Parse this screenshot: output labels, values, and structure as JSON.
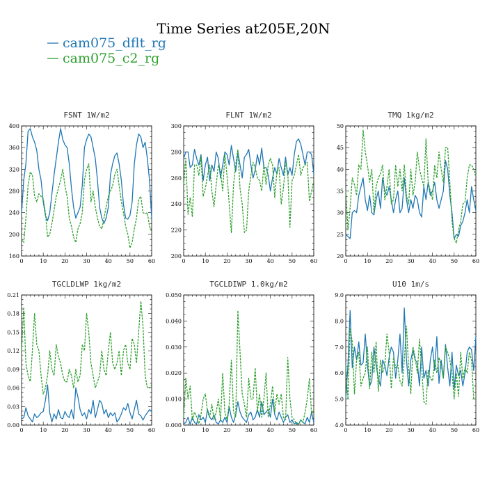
{
  "chart_data": {
    "title": "Time Series at205E,20N",
    "series_names": [
      "cam075_dflt_rg",
      "cam075_c2_rg"
    ],
    "colors": {
      "dflt": "#1f77b4",
      "c2": "#2ca02c"
    },
    "x_ticks": [
      "0",
      "10",
      "20",
      "30",
      "40",
      "50",
      "60"
    ],
    "panels": [
      {
        "type": "line",
        "title": "FSNT   1W/m2",
        "xlim": [
          0,
          60
        ],
        "ylim": [
          160,
          400
        ],
        "y_ticks": [
          "160",
          "200",
          "240",
          "280",
          "320",
          "360",
          "400"
        ],
        "series": [
          {
            "name": "cam075_dflt_rg",
            "values": [
              240,
              300,
              330,
              390,
              395,
              380,
              370,
              355,
              320,
              300,
              260,
              235,
              225,
              240,
              275,
              310,
              340,
              370,
              395,
              375,
              365,
              360,
              330,
              285,
              250,
              230,
              240,
              250,
              290,
              360,
              375,
              385,
              380,
              360,
              340,
              300,
              250,
              230,
              220,
              230,
              250,
              310,
              330,
              345,
              350,
              330,
              300,
              255,
              230,
              228,
              235,
              260,
              330,
              365,
              385,
              380,
              360,
              370,
              340,
              300,
              230
            ]
          },
          {
            "name": "cam075_c2_rg",
            "values": [
              190,
              185,
              230,
              290,
              315,
              310,
              270,
              260,
              275,
              270,
              265,
              240,
              195,
              200,
              220,
              245,
              270,
              285,
              300,
              320,
              290,
              270,
              230,
              215,
              195,
              185,
              210,
              220,
              240,
              300,
              320,
              330,
              260,
              280,
              250,
              230,
              215,
              210,
              230,
              250,
              270,
              280,
              290,
              310,
              320,
              290,
              260,
              240,
              215,
              200,
              175,
              185,
              210,
              230,
              265,
              270,
              240,
              238,
              240,
              215,
              205
            ]
          }
        ]
      },
      {
        "type": "line",
        "title": "FLNT   1W/m2",
        "xlim": [
          0,
          60
        ],
        "ylim": [
          200,
          300
        ],
        "y_ticks": [
          "200",
          "220",
          "240",
          "260",
          "280",
          "300"
        ],
        "series": [
          {
            "name": "cam075_dflt_rg",
            "values": [
              275,
              280,
              280,
              268,
              270,
              282,
              275,
              270,
              278,
              258,
              270,
              276,
              258,
              270,
              265,
              280,
              275,
              260,
              270,
              280,
              278,
              270,
              285,
              275,
              265,
              280,
              270,
              260,
              276,
              278,
              282,
              270,
              260,
              266,
              278,
              270,
              283,
              268,
              268,
              262,
              250,
              260,
              268,
              263,
              275,
              268,
              262,
              276,
              262,
              268,
              262,
              278,
              288,
              290,
              286,
              278,
              270,
              280,
              280,
              278,
              263
            ]
          },
          {
            "name": "cam075_c2_rg",
            "values": [
              255,
              275,
              232,
              245,
              230,
              270,
              270,
              262,
              276,
              246,
              252,
              262,
              270,
              250,
              238,
              255,
              270,
              265,
              250,
              278,
              262,
              240,
              218,
              255,
              270,
              282,
              252,
              240,
              218,
              220,
              250,
              262,
              272,
              268,
              260,
              258,
              250,
              270,
              255,
              270,
              275,
              270,
              245,
              265,
              268,
              240,
              252,
              272,
              265,
              222,
              258,
              262,
              270,
              278,
              262,
              268,
              270,
              272,
              242,
              250,
              258
            ]
          }
        ]
      },
      {
        "type": "line",
        "title": "TMQ   1kg/m2",
        "xlim": [
          0,
          60
        ],
        "ylim": [
          20,
          50
        ],
        "y_ticks": [
          "20",
          "25",
          "30",
          "35",
          "40",
          "45",
          "50"
        ],
        "series": [
          {
            "name": "cam075_dflt_rg",
            "values": [
              25,
              24.5,
              24,
              30,
              30.5,
              30,
              34,
              36,
              38,
              33,
              30.5,
              34,
              30,
              29.5,
              33,
              35,
              31,
              38,
              35,
              34,
              36,
              33,
              30,
              33,
              35,
              30,
              31,
              38,
              33,
              30,
              33,
              31,
              34,
              33,
              30,
              29,
              36,
              33,
              37,
              34,
              35,
              37,
              33,
              31,
              33,
              35,
              42,
              40,
              34,
              30,
              24,
              25,
              24.5,
              27,
              28,
              30,
              33,
              30,
              36,
              33,
              30.5
            ]
          },
          {
            "name": "cam075_c2_rg",
            "values": [
              35,
              26,
              31,
              38,
              36.5,
              34,
              41,
              40,
              49,
              44,
              41,
              37,
              40,
              30,
              36,
              38,
              39,
              41,
              33,
              36,
              40,
              32,
              33,
              41,
              36,
              40,
              35,
              41,
              34,
              32,
              40,
              34,
              37,
              44,
              40,
              38,
              36,
              47,
              37,
              35,
              33,
              41,
              38,
              44,
              40,
              37,
              45,
              45,
              37,
              28,
              24,
              23,
              26,
              28,
              32,
              32.5,
              38,
              41,
              41,
              40,
              38.5
            ]
          }
        ]
      },
      {
        "type": "line",
        "title": "TGCLDLWP   1kg/m2",
        "xlim": [
          0,
          60
        ],
        "ylim": [
          0.0,
          0.21
        ],
        "y_ticks": [
          "0.00",
          "0.03",
          "0.06",
          "0.09",
          "0.12",
          "0.15",
          "0.18",
          "0.21"
        ],
        "series": [
          {
            "name": "cam075_dflt_rg",
            "values": [
              0.01,
              0.012,
              0.028,
              0.015,
              0.01,
              0.005,
              0.018,
              0.012,
              0.015,
              0.02,
              0.022,
              0.04,
              0.065,
              0.02,
              0.005,
              0.018,
              0.01,
              0.025,
              0.012,
              0.01,
              0.022,
              0.015,
              0.012,
              0.025,
              0.01,
              0.06,
              0.045,
              0.025,
              0.015,
              0.02,
              0.01,
              0.025,
              0.018,
              0.04,
              0.012,
              0.025,
              0.04,
              0.035,
              0.018,
              0.025,
              0.012,
              0.02,
              0.015,
              0.02,
              0.005,
              0.01,
              0.018,
              0.028,
              0.024,
              0.035,
              0.02,
              0.01,
              0.025,
              0.04,
              0.018,
              0.015,
              0.008,
              0.015,
              0.02,
              0.025,
              0.022
            ]
          },
          {
            "name": "cam075_c2_rg",
            "values": [
              0.12,
              0.19,
              0.1,
              0.08,
              0.07,
              0.12,
              0.18,
              0.13,
              0.12,
              0.08,
              0.05,
              0.06,
              0.08,
              0.12,
              0.09,
              0.08,
              0.13,
              0.11,
              0.1,
              0.08,
              0.07,
              0.07,
              0.09,
              0.08,
              0.06,
              0.09,
              0.07,
              0.08,
              0.13,
              0.12,
              0.18,
              0.15,
              0.1,
              0.08,
              0.06,
              0.07,
              0.08,
              0.12,
              0.09,
              0.08,
              0.12,
              0.15,
              0.1,
              0.09,
              0.1,
              0.12,
              0.08,
              0.12,
              0.13,
              0.1,
              0.09,
              0.14,
              0.13,
              0.1,
              0.15,
              0.2,
              0.16,
              0.08,
              0.06,
              0.06,
              0.065
            ]
          }
        ]
      },
      {
        "type": "line",
        "title": "TGCLDIWP   1.0kg/m2",
        "xlim": [
          0,
          60
        ],
        "ylim": [
          0.0,
          0.05
        ],
        "y_ticks": [
          "0.000",
          "0.010",
          "0.020",
          "0.030",
          "0.040",
          "0.050"
        ],
        "series": [
          {
            "name": "cam075_dflt_rg",
            "values": [
              0.0005,
              0.001,
              0.003,
              0.0002,
              0.003,
              0.001,
              0.0005,
              0.004,
              0.002,
              0.003,
              0.001,
              0.006,
              0.003,
              0.002,
              0.004,
              0.001,
              0.0005,
              0.002,
              0.001,
              0.003,
              0.001,
              0.007,
              0.003,
              0.001,
              0.004,
              0.009,
              0.005,
              0.003,
              0.002,
              0.001,
              0.004,
              0.005,
              0.002,
              0.003,
              0.006,
              0.003,
              0.009,
              0.004,
              0.005,
              0.006,
              0.003,
              0.01,
              0.004,
              0.002,
              0.005,
              0.003,
              0.001,
              0.003,
              0.004,
              0.001,
              0.002,
              0.0005,
              0.001,
              0.0003,
              0.002,
              0.001,
              0.0005,
              0.003,
              0.001,
              0.005,
              0.001
            ]
          },
          {
            "name": "cam075_c2_rg",
            "values": [
              0.003,
              0.018,
              0.01,
              0.015,
              0.002,
              0.005,
              0.003,
              0.0005,
              0.004,
              0.01,
              0.012,
              0.005,
              0.003,
              0.008,
              0.002,
              0.005,
              0.01,
              0.002,
              0.02,
              0.005,
              0.002,
              0.008,
              0.025,
              0.005,
              0.003,
              0.044,
              0.028,
              0.012,
              0.008,
              0.003,
              0.018,
              0.01,
              0.01,
              0.022,
              0.005,
              0.012,
              0.003,
              0.01,
              0.02,
              0.003,
              0.008,
              0.015,
              0.005,
              0.012,
              0.008,
              0.012,
              0.003,
              0.002,
              0.026,
              0.01,
              0.003,
              0.002,
              0.0005,
              0.0003,
              0.002,
              0.001,
              0.005,
              0.01,
              0.018,
              0.004,
              0.006
            ]
          }
        ]
      },
      {
        "type": "line",
        "title": "U10   1m/s",
        "xlim": [
          0,
          60
        ],
        "ylim": [
          4.0,
          9.0
        ],
        "y_ticks": [
          "4.0",
          "5.0",
          "6.0",
          "7.0",
          "8.0",
          "9.0"
        ],
        "series": [
          {
            "name": "cam075_dflt_rg",
            "values": [
              5.0,
              6.3,
              8.4,
              6.2,
              7.0,
              6.5,
              7.2,
              6.3,
              6.4,
              7.5,
              6.3,
              5.5,
              5.7,
              7.0,
              6.3,
              5.8,
              5.5,
              6.5,
              6.3,
              5.9,
              6.6,
              7.0,
              6.8,
              5.8,
              6.5,
              7.5,
              6.0,
              8.5,
              6.5,
              5.5,
              6.5,
              6.9,
              6.5,
              6.4,
              5.5,
              7.0,
              5.8,
              6.1,
              5.5,
              6.5,
              7.0,
              6.1,
              7.4,
              5.6,
              6.5,
              5.8,
              7.1,
              6.2,
              5.5,
              6.8,
              5.4,
              6.3,
              5.9,
              6.1,
              5.5,
              6.0,
              6.8,
              7.0,
              6.9,
              6.1,
              7.4
            ]
          },
          {
            "name": "cam075_c2_rg",
            "values": [
              6.3,
              5.0,
              7.7,
              7.2,
              5.2,
              6.5,
              6.8,
              5.5,
              5.8,
              6.0,
              7.0,
              5.4,
              6.8,
              6.0,
              7.2,
              5.3,
              6.5,
              6.0,
              6.3,
              7.5,
              6.8,
              5.4,
              6.6,
              6.2,
              6.3,
              5.7,
              5.5,
              6.5,
              7.8,
              6.2,
              5.2,
              7.0,
              6.6,
              6.0,
              7.3,
              6.2,
              4.9,
              4.8,
              6.1,
              5.8,
              5.7,
              6.5,
              6.0,
              6.6,
              6.3,
              5.8,
              7.0,
              6.8,
              6.5,
              6.0,
              5.0,
              6.0,
              5.1,
              6.8,
              5.8,
              6.2,
              6.0,
              6.8,
              6.5,
              5.0,
              5.0
            ]
          }
        ]
      }
    ]
  }
}
